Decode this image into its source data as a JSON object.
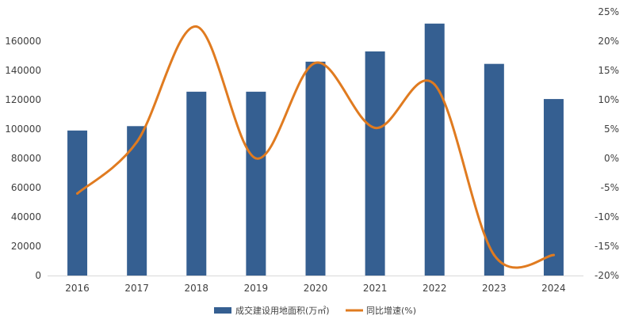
{
  "chart_data": {
    "type": "bar",
    "categories": [
      "2016",
      "2017",
      "2018",
      "2019",
      "2020",
      "2021",
      "2022",
      "2023",
      "2024"
    ],
    "series": [
      {
        "name": "成交建设用地面积(万㎡)",
        "type": "bar",
        "axis": "left",
        "color": "#355f91",
        "values": [
          99000,
          102000,
          125500,
          125500,
          146000,
          153000,
          172000,
          144500,
          120500
        ]
      },
      {
        "name": "同比增速(%)",
        "type": "line",
        "axis": "right",
        "color": "#e07b20",
        "values": [
          -6,
          2.8,
          22.5,
          0,
          16.3,
          5.2,
          12.6,
          -16.5,
          -16.5
        ]
      }
    ],
    "y_left": {
      "ylim": [
        0,
        180000
      ],
      "ticks": [
        0,
        20000,
        40000,
        60000,
        80000,
        100000,
        120000,
        140000,
        160000
      ],
      "tick_labels": [
        "0",
        "20000",
        "40000",
        "60000",
        "80000",
        "100000",
        "120000",
        "140000",
        "160000"
      ]
    },
    "y_right": {
      "ylim": [
        -20,
        25
      ],
      "ticks": [
        -20,
        -15,
        -10,
        -5,
        0,
        5,
        10,
        15,
        20,
        25
      ],
      "tick_labels": [
        "-20%",
        "-15%",
        "-10%",
        "-5%",
        "0%",
        "5%",
        "10%",
        "15%",
        "20%",
        "25%"
      ]
    },
    "title": "",
    "xlabel": "",
    "ylabel": "",
    "grid": false,
    "legend_position": "bottom-center"
  }
}
